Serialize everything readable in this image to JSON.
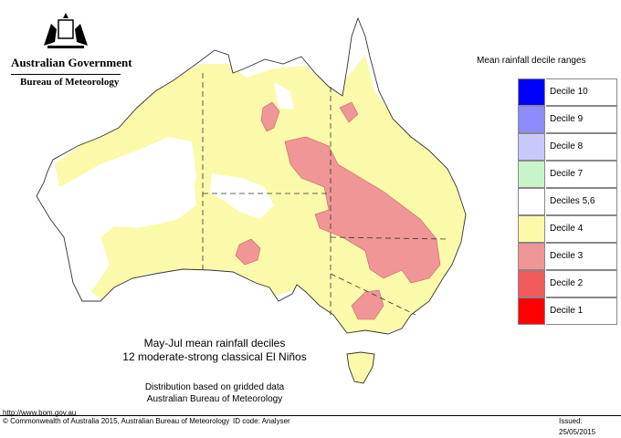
{
  "header": {
    "government": "Australian Government",
    "bureau": "Bureau of Meteorology"
  },
  "legend": {
    "title": "Mean rainfall decile ranges",
    "items": [
      {
        "label": "Decile 10",
        "color": "#0000ff"
      },
      {
        "label": "Decile 9",
        "color": "#8c8cff"
      },
      {
        "label": "Decile 8",
        "color": "#c8c8ff"
      },
      {
        "label": "Decile 7",
        "color": "#c8f5c8"
      },
      {
        "label": "Deciles 5,6",
        "color": "#ffffff"
      },
      {
        "label": "Decile 4",
        "color": "#fafaaa"
      },
      {
        "label": "Decile 3",
        "color": "#f09696"
      },
      {
        "label": "Decile 2",
        "color": "#f05a5a"
      },
      {
        "label": "Decile 1",
        "color": "#ff0000"
      }
    ]
  },
  "map": {
    "title_line1": "May-Jul mean rainfall deciles",
    "title_line2": "12 moderate-strong classical El Niños",
    "note_line1": "Distribution based on gridded data",
    "note_line2": "Australian Bureau of Meteorology"
  },
  "footer": {
    "url": "http://www.bom.gov.au",
    "copyright": "© Commonwealth of Australia 2015, Australian Bureau of Meteorology",
    "id_code": "ID code: Analyser",
    "issued": "Issued: 25/05/2015"
  }
}
